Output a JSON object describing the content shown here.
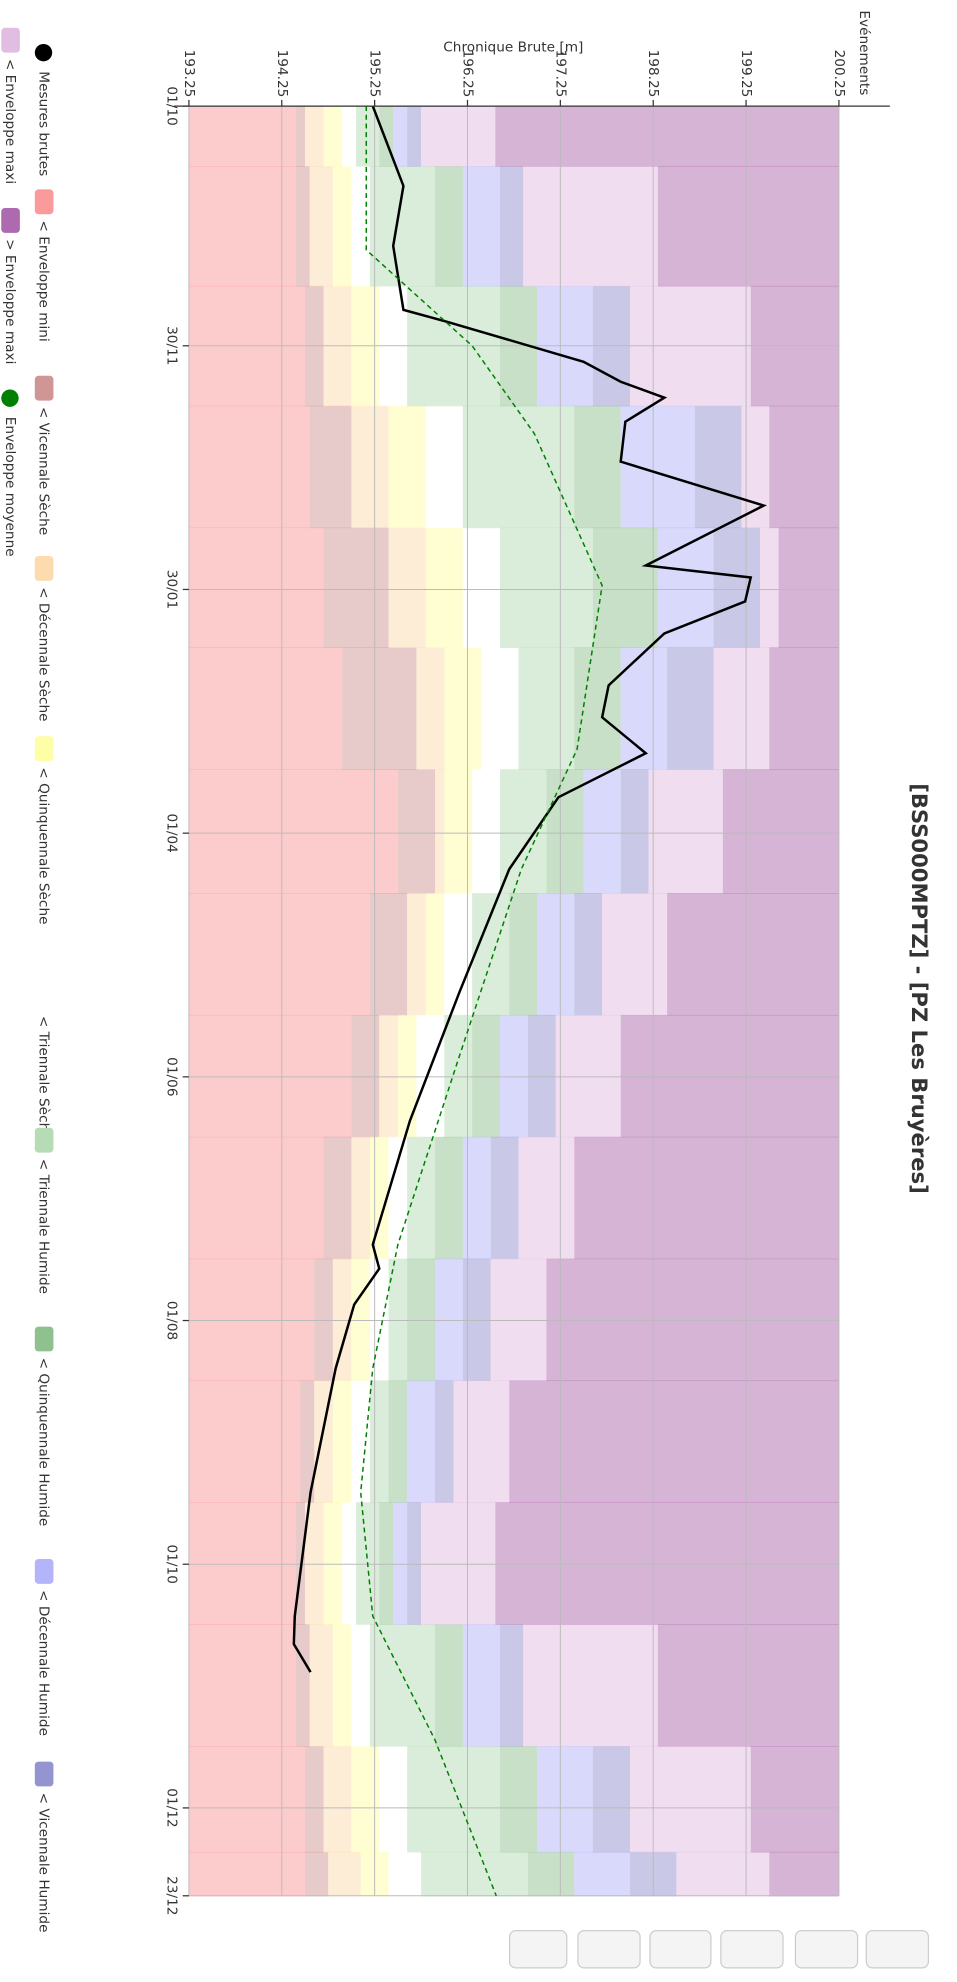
{
  "chart_data": {
    "type": "line",
    "title": "[BSS000MPTZ] - [PZ Les Bruyères]",
    "ylabel": "Chronique Brute [m]",
    "events_label": "Evénements",
    "xlim": [
      0,
      448
    ],
    "xticks": [
      {
        "value": 0,
        "label": "01/10"
      },
      {
        "value": 60,
        "label": "30/11"
      },
      {
        "value": 121,
        "label": "30/01"
      },
      {
        "value": 182,
        "label": "01/04"
      },
      {
        "value": 243,
        "label": "01/06"
      },
      {
        "value": 304,
        "label": "01/08"
      },
      {
        "value": 365,
        "label": "01/10"
      },
      {
        "value": 426,
        "label": "01/12"
      },
      {
        "value": 448,
        "label": "23/12"
      }
    ],
    "ylim": [
      193.25,
      200.25
    ],
    "yticks": [
      193.25,
      194.25,
      195.25,
      196.25,
      197.25,
      198.25,
      199.25,
      200.25
    ],
    "grid": true,
    "x": [
      0,
      30,
      60,
      90,
      121,
      150,
      182,
      212,
      243,
      273,
      304,
      334,
      365,
      395,
      426,
      448
    ],
    "series": [
      {
        "name": "Mesures brutes",
        "color": "#000000",
        "kind": "line",
        "x": [
          0,
          20,
          35,
          51,
          54,
          64,
          69,
          73,
          79,
          89,
          100,
          115,
          118,
          124,
          132,
          145,
          153,
          162,
          173,
          191,
          222,
          254,
          285,
          291,
          300,
          316,
          347,
          378,
          385,
          392
        ],
        "values": [
          195.23,
          195.56,
          195.45,
          195.56,
          196.03,
          197.5,
          197.9,
          198.37,
          197.95,
          197.9,
          199.44,
          198.17,
          199.3,
          199.24,
          198.37,
          197.77,
          197.7,
          198.17,
          197.23,
          196.7,
          196.16,
          195.63,
          195.23,
          195.3,
          195.03,
          194.83,
          194.56,
          194.39,
          194.38,
          194.56
        ]
      },
      {
        "name": "< Enveloppe mini",
        "color": "#fa9a9a",
        "kind": "band",
        "values": [
          194.4,
          194.4,
          194.5,
          194.55,
          194.7,
          194.9,
          195.5,
          195.2,
          195.0,
          194.7,
          194.6,
          194.45,
          194.4,
          194.4,
          194.5,
          194.5
        ]
      },
      {
        "name": "< Vicennale Sèche",
        "color": "#d09595",
        "kind": "band",
        "values": [
          194.5,
          194.55,
          194.7,
          195.0,
          195.4,
          195.7,
          195.9,
          195.6,
          195.3,
          195.0,
          194.8,
          194.6,
          194.5,
          194.55,
          194.7,
          194.75
        ]
      },
      {
        "name": "< Décennale Sèche",
        "color": "#fcdcae",
        "kind": "band",
        "values": [
          194.7,
          194.8,
          195.0,
          195.4,
          195.8,
          196.0,
          196.0,
          195.8,
          195.5,
          195.2,
          195.0,
          194.8,
          194.7,
          194.8,
          195.0,
          195.1
        ]
      },
      {
        "name": "< Quinquennale Sèche",
        "color": "#fefea6",
        "kind": "band",
        "values": [
          194.9,
          195.0,
          195.3,
          195.8,
          196.2,
          196.4,
          196.3,
          196.0,
          195.7,
          195.4,
          195.2,
          195.0,
          194.9,
          195.0,
          195.3,
          195.4
        ]
      },
      {
        "name": "< Triennale Sèche",
        "color": "#ffffff",
        "kind": "band",
        "values": [
          195.05,
          195.2,
          195.6,
          196.2,
          196.6,
          196.8,
          196.6,
          196.3,
          196.0,
          195.6,
          195.4,
          195.2,
          195.05,
          195.2,
          195.6,
          195.75
        ]
      },
      {
        "name": "< Triennale Humide",
        "color": "#b5dcb5",
        "kind": "band",
        "values": [
          195.3,
          195.9,
          196.6,
          197.4,
          197.6,
          197.4,
          197.1,
          196.7,
          196.3,
          195.9,
          195.6,
          195.4,
          195.3,
          195.9,
          196.6,
          196.9
        ]
      },
      {
        "name": "< Quinquennale Humide",
        "color": "#8fc18f",
        "kind": "band",
        "values": [
          195.45,
          196.2,
          197.0,
          197.9,
          198.3,
          197.9,
          197.5,
          197.0,
          196.6,
          196.2,
          195.9,
          195.6,
          195.45,
          196.2,
          197.0,
          197.4
        ]
      },
      {
        "name": "< Décennale Humide",
        "color": "#b4b4fa",
        "kind": "band",
        "values": [
          195.6,
          196.6,
          197.6,
          198.7,
          198.9,
          198.4,
          197.9,
          197.4,
          196.9,
          196.5,
          196.2,
          195.9,
          195.6,
          196.6,
          197.6,
          198.0
        ]
      },
      {
        "name": "< Vicennale Humide",
        "color": "#9494d0",
        "kind": "band",
        "values": [
          195.75,
          196.85,
          198.0,
          199.2,
          199.4,
          198.9,
          198.2,
          197.7,
          197.2,
          196.8,
          196.5,
          196.1,
          195.75,
          196.85,
          198.0,
          198.5
        ]
      },
      {
        "name": "< Enveloppe maxi",
        "color": "#e2bde2",
        "kind": "band",
        "values": [
          196.55,
          198.3,
          199.3,
          199.5,
          199.6,
          199.5,
          199.0,
          198.4,
          197.9,
          197.4,
          197.1,
          196.7,
          196.55,
          198.3,
          199.3,
          199.5
        ]
      },
      {
        "name": "> Enveloppe maxi",
        "color": "#ae6aae",
        "kind": "top"
      },
      {
        "name": "Enveloppe moyenne",
        "color": "#008000",
        "kind": "dashed",
        "x": [
          0,
          36,
          60,
          82,
          120,
          161,
          191,
          238,
          285,
          316,
          347,
          378,
          409,
          448
        ],
        "values": [
          195.16,
          195.16,
          196.3,
          196.97,
          197.7,
          197.43,
          196.83,
          196.16,
          195.5,
          195.23,
          195.1,
          195.23,
          195.9,
          196.56
        ]
      }
    ]
  }
}
